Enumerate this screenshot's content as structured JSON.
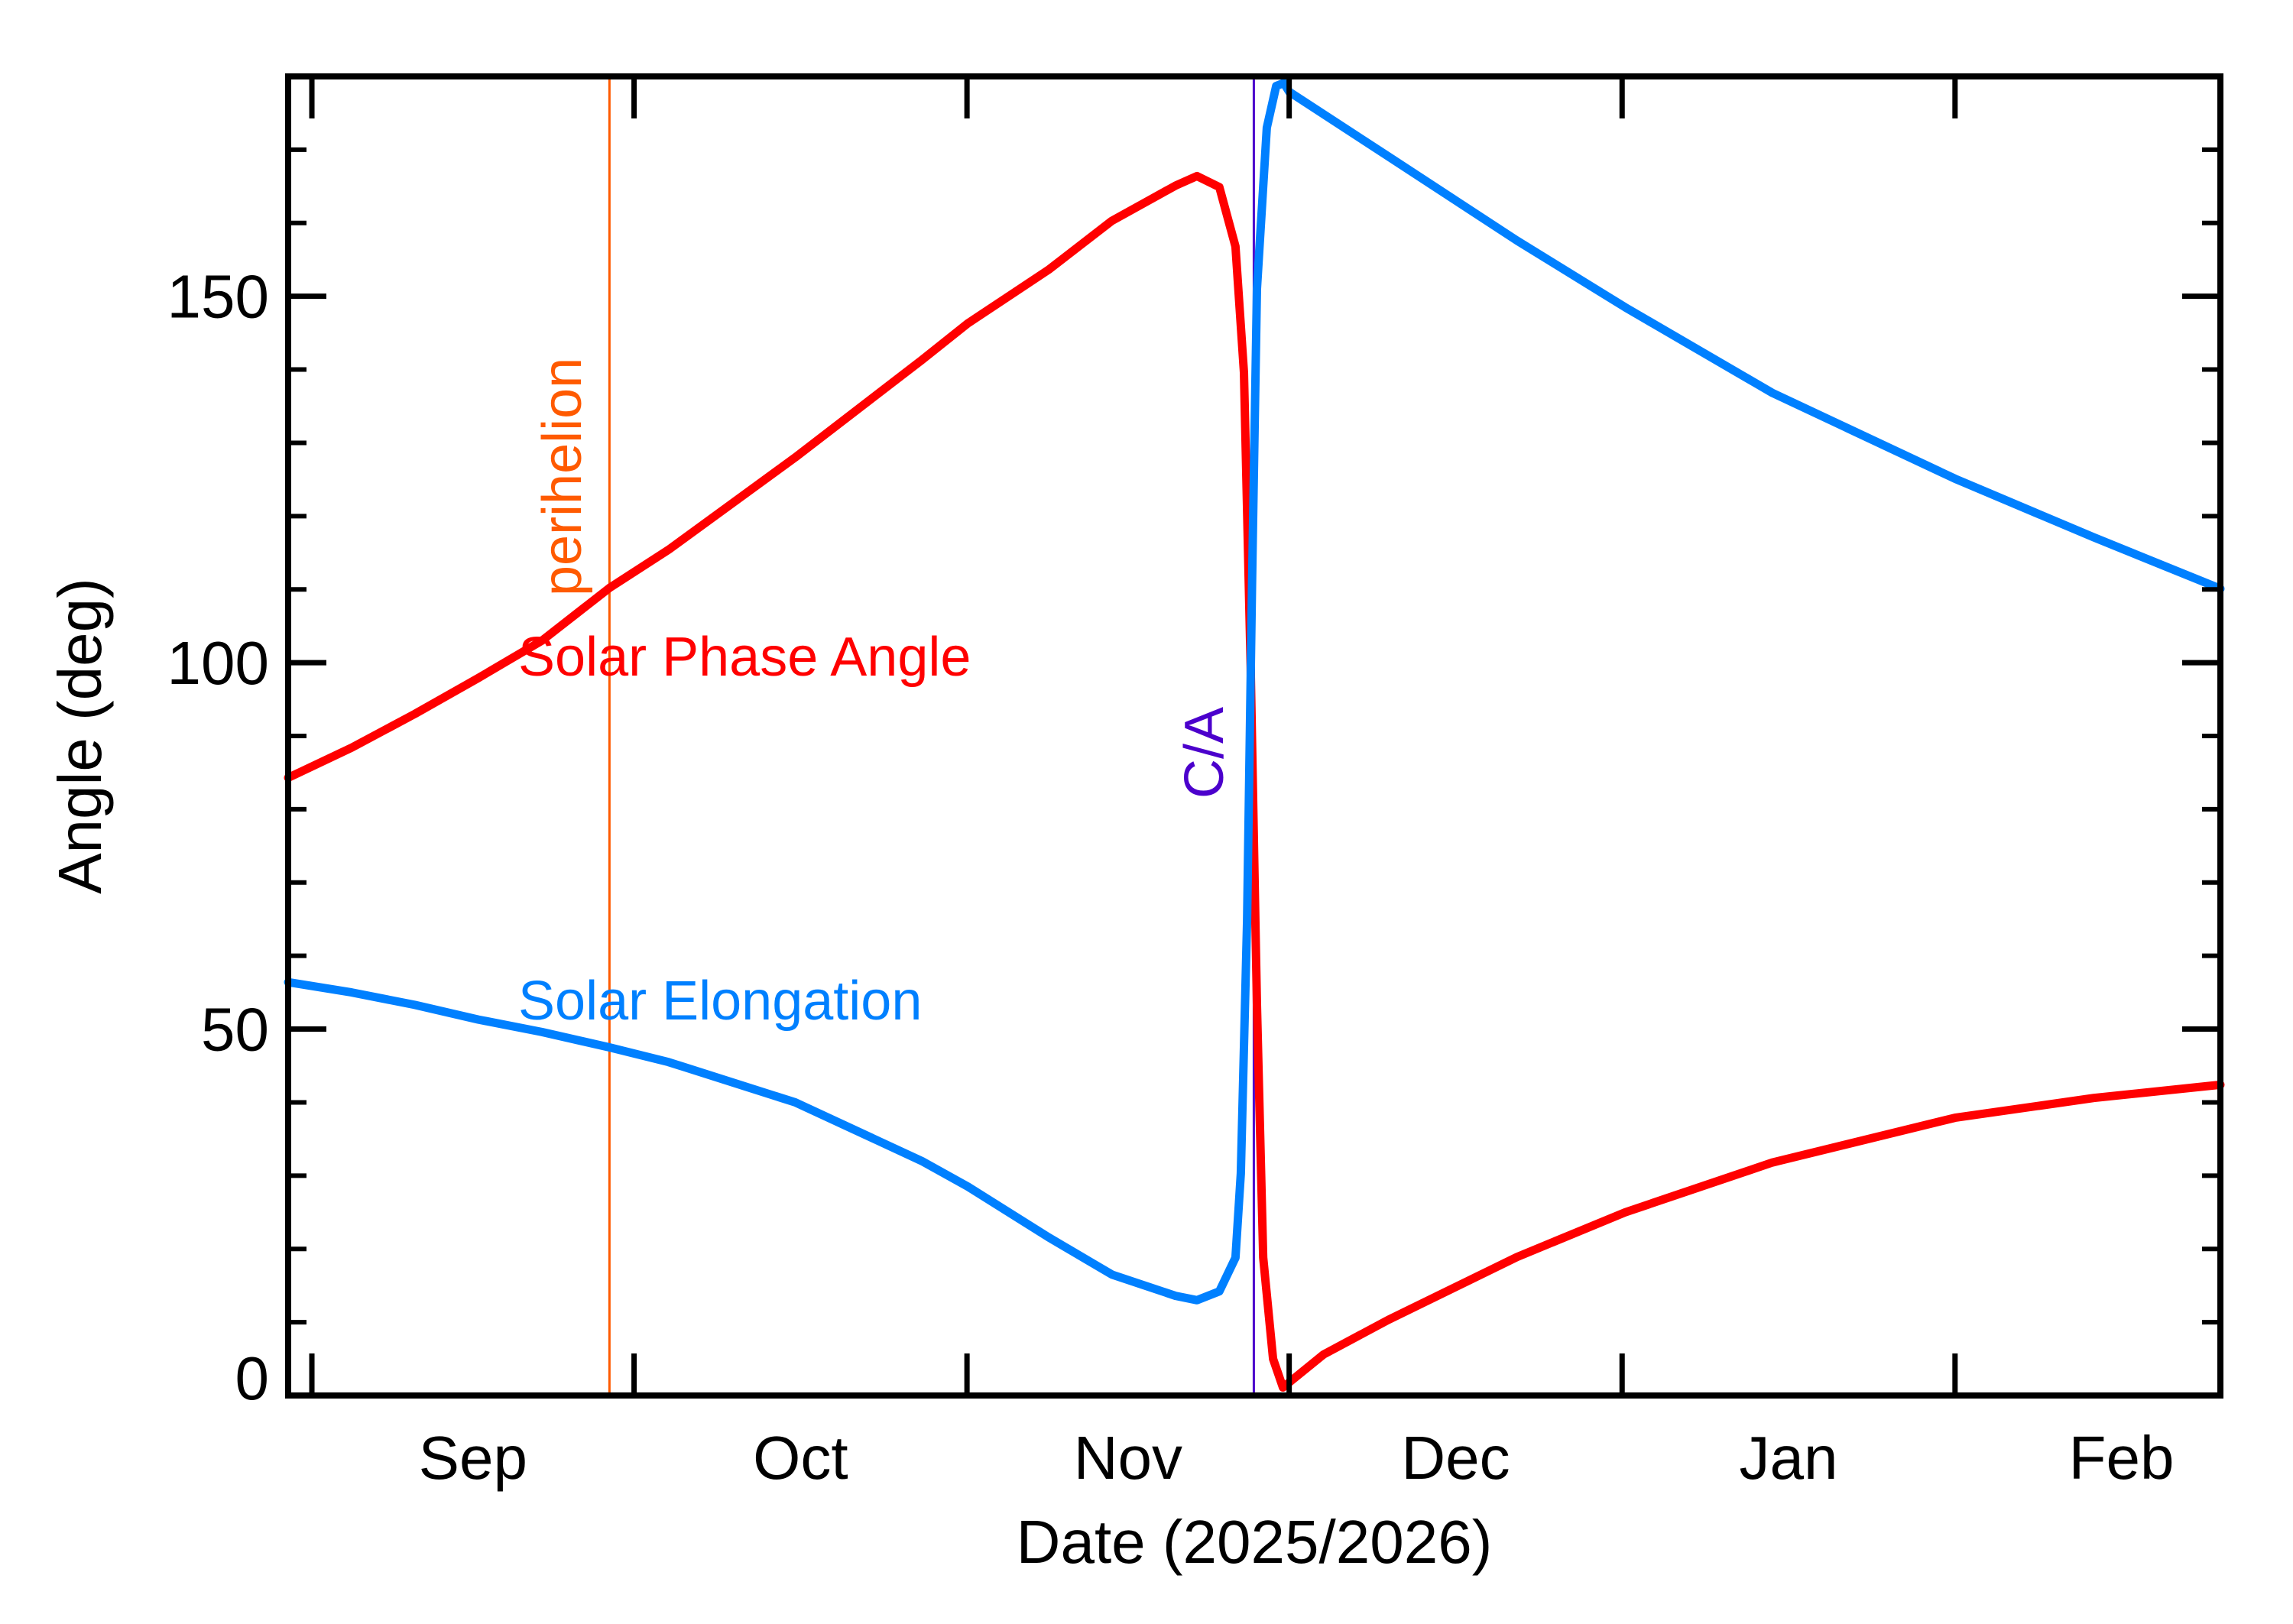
{
  "chart_data": {
    "type": "line",
    "title": "",
    "xlabel": "Date (2025/2026)",
    "ylabel": "Angle (deg)",
    "xlim": [
      "2025-08-29T19:00",
      "2026-02-25T17:00"
    ],
    "ylim": [
      0,
      180
    ],
    "grid": false,
    "x_ticks": [
      {
        "date": "2025-09-01",
        "label": "Sep"
      },
      {
        "date": "2025-10-01",
        "label": "Oct"
      },
      {
        "date": "2025-11-01",
        "label": "Nov"
      },
      {
        "date": "2025-12-01",
        "label": "Dec"
      },
      {
        "date": "2026-01-01",
        "label": "Jan"
      },
      {
        "date": "2026-02-01",
        "label": "Feb"
      }
    ],
    "y_ticks": [
      {
        "value": 0,
        "label": "0"
      },
      {
        "value": 50,
        "label": "50"
      },
      {
        "value": 100,
        "label": "100"
      },
      {
        "value": 150,
        "label": "150"
      }
    ],
    "y_minor_step": 10,
    "series": [
      {
        "name": "Solar Phase Angle",
        "color": "#ff0000",
        "points": [
          [
            "2025-08-29T19:00",
            84.3
          ],
          [
            "2025-09-04T17:00",
            88.4
          ],
          [
            "2025-09-10T14:00",
            93.0
          ],
          [
            "2025-09-16T12:00",
            97.9
          ],
          [
            "2025-09-22T10:00",
            103.0
          ],
          [
            "2025-09-28T17:00",
            110.2
          ],
          [
            "2025-10-04T05:00",
            115.4
          ],
          [
            "2025-10-16T00:00",
            128.0
          ],
          [
            "2025-10-27T19:00",
            141.3
          ],
          [
            "2025-11-01T02:00",
            146.3
          ],
          [
            "2025-11-08T14:00",
            153.6
          ],
          [
            "2025-11-14T12:00",
            160.3
          ],
          [
            "2025-11-20T10:00",
            165.1
          ],
          [
            "2025-11-22T10:00",
            166.4
          ],
          [
            "2025-11-24T12:00",
            164.9
          ],
          [
            "2025-11-26T00:00",
            156.8
          ],
          [
            "2025-11-26T19:00",
            139.6
          ],
          [
            "2025-11-27T10:00",
            99.3
          ],
          [
            "2025-11-28T00:00",
            53.3
          ],
          [
            "2025-11-28T14:00",
            18.8
          ],
          [
            "2025-11-29T12:00",
            5.0
          ],
          [
            "2025-11-30T10:00",
            1.1
          ],
          [
            "2025-12-04T05:00",
            5.6
          ],
          [
            "2025-12-10T05:00",
            10.3
          ],
          [
            "2025-12-22T05:00",
            18.9
          ],
          [
            "2026-01-01T07:00",
            25.0
          ],
          [
            "2026-01-15T00:00",
            31.8
          ],
          [
            "2026-02-01T00:00",
            37.9
          ],
          [
            "2026-02-13T22:00",
            40.6
          ],
          [
            "2026-02-25T17:00",
            42.4
          ]
        ]
      },
      {
        "name": "Solar Elongation",
        "color": "#0080ff",
        "points": [
          [
            "2025-08-29T19:00",
            56.4
          ],
          [
            "2025-09-04T17:00",
            55.0
          ],
          [
            "2025-09-10T14:00",
            53.3
          ],
          [
            "2025-09-16T12:00",
            51.3
          ],
          [
            "2025-09-22T10:00",
            49.6
          ],
          [
            "2025-09-28T17:00",
            47.5
          ],
          [
            "2025-10-04T05:00",
            45.5
          ],
          [
            "2025-10-16T00:00",
            40.0
          ],
          [
            "2025-10-27T19:00",
            32.0
          ],
          [
            "2025-11-01T02:00",
            28.5
          ],
          [
            "2025-11-08T14:00",
            21.6
          ],
          [
            "2025-11-14T12:00",
            16.5
          ],
          [
            "2025-11-20T10:00",
            13.6
          ],
          [
            "2025-11-22T10:00",
            13.0
          ],
          [
            "2025-11-24T12:00",
            14.2
          ],
          [
            "2025-11-26T00:00",
            18.8
          ],
          [
            "2025-11-26T12:00",
            30.3
          ],
          [
            "2025-11-27T02:00",
            64.8
          ],
          [
            "2025-11-27T13:00",
            110.8
          ],
          [
            "2025-11-28T00:00",
            151.0
          ],
          [
            "2025-11-28T22:00",
            173.0
          ],
          [
            "2025-11-29T19:00",
            178.7
          ],
          [
            "2025-11-30T12:00",
            179.1
          ],
          [
            "2025-12-01T00:00",
            177.9
          ],
          [
            "2025-12-10T05:00",
            169.1
          ],
          [
            "2025-12-22T05:00",
            157.6
          ],
          [
            "2026-01-01T07:00",
            148.5
          ],
          [
            "2026-01-15T00:00",
            136.8
          ],
          [
            "2026-02-01T00:00",
            125.1
          ],
          [
            "2026-02-13T22:00",
            117.1
          ],
          [
            "2026-02-25T17:00",
            110.1
          ]
        ]
      }
    ],
    "markers": [
      {
        "label": "perihelion",
        "date": "2025-09-28T17:00",
        "color": "#ff5a00"
      },
      {
        "label": "C/A",
        "date": "2025-11-27T17:00",
        "color": "#4b00cc"
      }
    ],
    "legend": "inline-labels"
  }
}
